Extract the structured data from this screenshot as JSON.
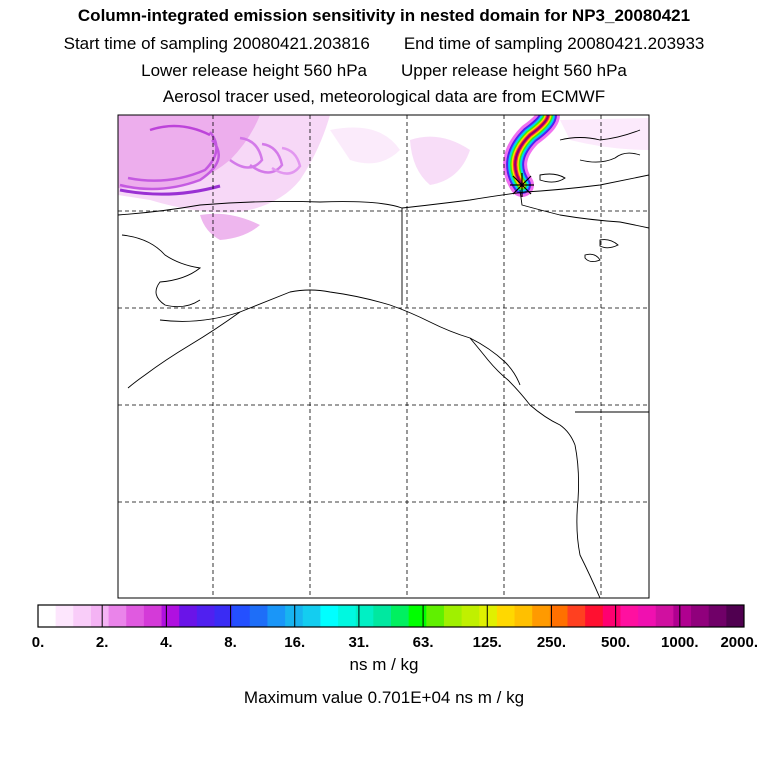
{
  "header": {
    "title": "Column-integrated emission sensitivity in nested domain for NP3_20080421",
    "start_label": "Start time of sampling 20080421.203816",
    "end_label": "End time of sampling 20080421.203933",
    "lower_label": "Lower release height  560 hPa",
    "upper_label": "Upper release height  560 hPa",
    "info": "Aerosol tracer used, meteorological data are from ECMWF"
  },
  "colorbar": {
    "colors": [
      "#ffffff",
      "#fde6fd",
      "#f9cdf9",
      "#f4b3f4",
      "#ea84ea",
      "#e05ae0",
      "#d43ad8",
      "#b010e0",
      "#6a14e8",
      "#5020f0",
      "#3a2cf4",
      "#2450ff",
      "#1e6ef8",
      "#1a96f8",
      "#18b4f0",
      "#14cdf0",
      "#00ffff",
      "#00f8e0",
      "#00f0c4",
      "#00e8a0",
      "#00f060",
      "#00ff00",
      "#60f000",
      "#a0f000",
      "#c0f000",
      "#e0f000",
      "#ffd800",
      "#ffc000",
      "#ff9a00",
      "#ff7000",
      "#ff4020",
      "#ff1030",
      "#ff0070",
      "#ff10a0",
      "#f010b0",
      "#d010a0",
      "#b00090",
      "#90007c",
      "#700068",
      "#500050"
    ],
    "labels": [
      "0.",
      "2.",
      "4.",
      "8.",
      "16.",
      "31.",
      "63.",
      "125.",
      "250.",
      "500.",
      "1000.",
      "2000."
    ],
    "units": "ns m / kg"
  },
  "maximum": "Maximum value  0.701E+04 ns m / kg"
}
